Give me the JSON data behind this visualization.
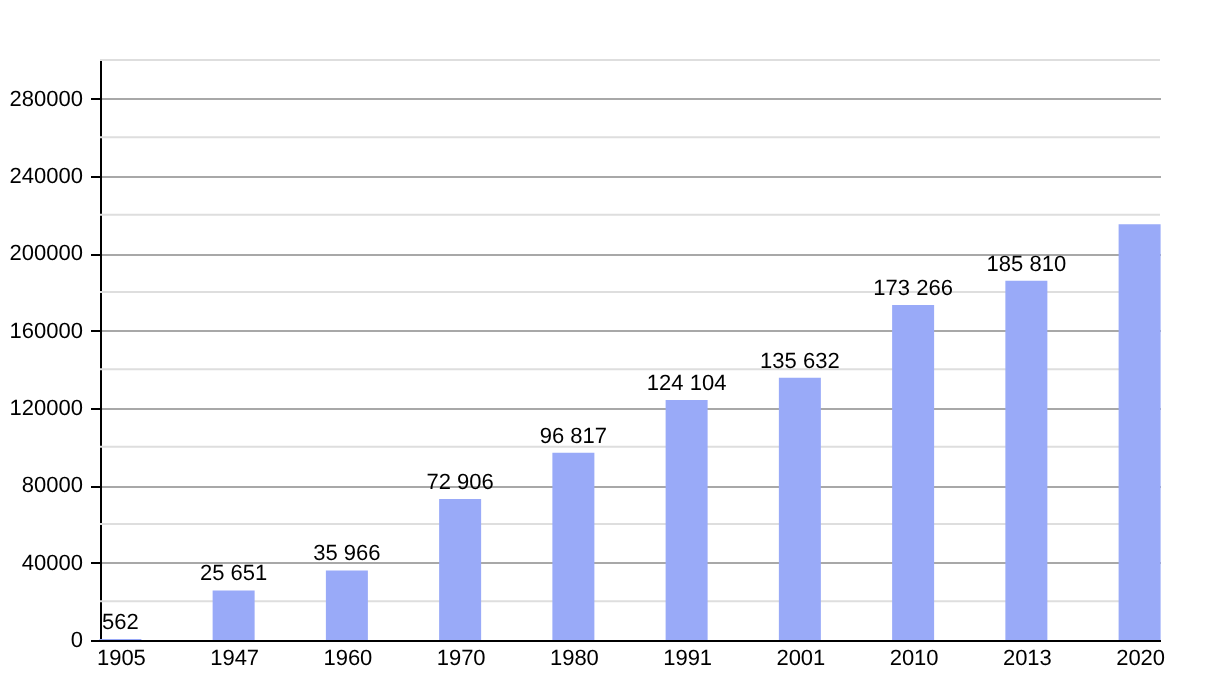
{
  "chart_data": {
    "type": "bar",
    "categories": [
      "1905",
      "1947",
      "1960",
      "1970",
      "1980",
      "1991",
      "2001",
      "2010",
      "2013",
      "2020"
    ],
    "values": [
      562,
      25651,
      35966,
      72906,
      96817,
      124104,
      135632,
      173266,
      185810,
      215000
    ],
    "value_labels": [
      "562",
      "25 651",
      "35 966",
      "72 906",
      "96 817",
      "124 104",
      "135 632",
      "173 266",
      "185 810",
      null
    ],
    "color": "#99aaf8",
    "ylim": [
      0,
      300000
    ],
    "yticks": [
      0,
      {
        "value": 20000,
        "label": null
      },
      40000,
      {
        "value": 60000,
        "label": null
      },
      80000,
      {
        "value": 100000,
        "label": null
      },
      120000,
      {
        "value": 140000,
        "label": null
      },
      160000,
      {
        "value": 180000,
        "label": null
      },
      200000,
      {
        "value": 220000,
        "label": null
      },
      240000,
      {
        "value": 260000,
        "label": null
      },
      280000,
      {
        "value": 300000,
        "label": null
      }
    ],
    "grid": true
  }
}
